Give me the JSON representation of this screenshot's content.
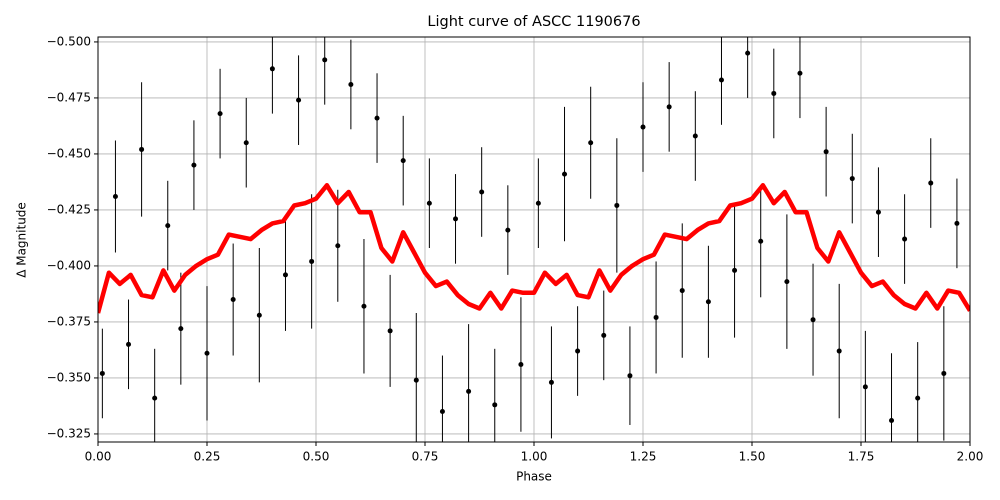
{
  "chart_data": {
    "type": "scatter",
    "title": "Light curve of ASCC 1190676",
    "xlabel": "Phase",
    "ylabel": "Δ Magnitude",
    "xlim": [
      0,
      2
    ],
    "ylim": [
      -0.3214,
      -0.5022
    ],
    "grid": true,
    "xticks": [
      {
        "value": 0,
        "label": "0.00"
      },
      {
        "value": 0.25,
        "label": "0.25"
      },
      {
        "value": 0.5,
        "label": "0.50"
      },
      {
        "value": 0.75,
        "label": "0.75"
      },
      {
        "value": 1,
        "label": "1.00"
      },
      {
        "value": 1.25,
        "label": "1.25"
      },
      {
        "value": 1.5,
        "label": "1.50"
      },
      {
        "value": 1.75,
        "label": "1.75"
      },
      {
        "value": 2,
        "label": "2.00"
      }
    ],
    "yticks": [
      {
        "value": -0.325,
        "label": "−0.325"
      },
      {
        "value": -0.35,
        "label": "−0.350"
      },
      {
        "value": -0.375,
        "label": "−0.375"
      },
      {
        "value": -0.4,
        "label": "−0.400"
      },
      {
        "value": -0.425,
        "label": "−0.425"
      },
      {
        "value": -0.45,
        "label": "−0.450"
      },
      {
        "value": -0.475,
        "label": "−0.475"
      },
      {
        "value": -0.5,
        "label": "−0.500"
      }
    ],
    "points": {
      "color": "#000000",
      "x": [
        0.01,
        0.04,
        0.07,
        0.1,
        0.13,
        0.16,
        0.19,
        0.22,
        0.25,
        0.28,
        0.31,
        0.34,
        0.37,
        0.4,
        0.43,
        0.46,
        0.49,
        0.52,
        0.55,
        0.58,
        0.61,
        0.64,
        0.67,
        0.7,
        0.73,
        0.76,
        0.79,
        0.82,
        0.85,
        0.88,
        0.91,
        0.94,
        0.97,
        1.01,
        1.04,
        1.07,
        1.1,
        1.13,
        1.16,
        1.19,
        1.22,
        1.25,
        1.28,
        1.31,
        1.34,
        1.37,
        1.4,
        1.43,
        1.46,
        1.49,
        1.52,
        1.55,
        1.58,
        1.61,
        1.64,
        1.67,
        1.7,
        1.73,
        1.76,
        1.79,
        1.82,
        1.85,
        1.88,
        1.91,
        1.94,
        1.97
      ],
      "y": [
        -0.352,
        -0.431,
        -0.365,
        -0.452,
        -0.341,
        -0.418,
        -0.372,
        -0.445,
        -0.361,
        -0.468,
        -0.385,
        -0.455,
        -0.378,
        -0.488,
        -0.396,
        -0.474,
        -0.402,
        -0.492,
        -0.409,
        -0.481,
        -0.382,
        -0.466,
        -0.371,
        -0.447,
        -0.349,
        -0.428,
        -0.335,
        -0.421,
        -0.344,
        -0.433,
        -0.338,
        -0.416,
        -0.356,
        -0.428,
        -0.348,
        -0.441,
        -0.362,
        -0.455,
        -0.369,
        -0.427,
        -0.351,
        -0.462,
        -0.377,
        -0.471,
        -0.389,
        -0.458,
        -0.384,
        -0.483,
        -0.398,
        -0.495,
        -0.411,
        -0.477,
        -0.393,
        -0.486,
        -0.376,
        -0.451,
        -0.362,
        -0.439,
        -0.346,
        -0.424,
        -0.331,
        -0.412,
        -0.341,
        -0.437,
        -0.352,
        -0.419
      ],
      "yerr": [
        0.02,
        0.025,
        0.02,
        0.03,
        0.022,
        0.02,
        0.025,
        0.02,
        0.03,
        0.02,
        0.025,
        0.02,
        0.03,
        0.02,
        0.025,
        0.02,
        0.03,
        0.02,
        0.025,
        0.02,
        0.03,
        0.02,
        0.025,
        0.02,
        0.03,
        0.02,
        0.025,
        0.02,
        0.03,
        0.02,
        0.025,
        0.02,
        0.03,
        0.02,
        0.025,
        0.03,
        0.02,
        0.025,
        0.02,
        0.03,
        0.022,
        0.02,
        0.025,
        0.02,
        0.03,
        0.02,
        0.025,
        0.02,
        0.03,
        0.02,
        0.025,
        0.02,
        0.03,
        0.02,
        0.025,
        0.02,
        0.03,
        0.02,
        0.025,
        0.02,
        0.03,
        0.02,
        0.025,
        0.02,
        0.03,
        0.02
      ]
    },
    "curve": {
      "color": "#ff0000",
      "x": [
        0,
        0.025,
        0.05,
        0.075,
        0.1,
        0.125,
        0.15,
        0.175,
        0.2,
        0.225,
        0.25,
        0.275,
        0.3,
        0.325,
        0.35,
        0.375,
        0.4,
        0.425,
        0.45,
        0.475,
        0.5,
        0.525,
        0.55,
        0.575,
        0.6,
        0.625,
        0.65,
        0.675,
        0.7,
        0.725,
        0.75,
        0.775,
        0.8,
        0.825,
        0.85,
        0.875,
        0.9,
        0.925,
        0.95,
        0.975,
        1,
        1.025,
        1.05,
        1.075,
        1.1,
        1.125,
        1.15,
        1.175,
        1.2,
        1.225,
        1.25,
        1.275,
        1.3,
        1.325,
        1.35,
        1.375,
        1.4,
        1.425,
        1.45,
        1.475,
        1.5,
        1.525,
        1.55,
        1.575,
        1.6,
        1.625,
        1.65,
        1.675,
        1.7,
        1.725,
        1.75,
        1.775,
        1.8,
        1.825,
        1.85,
        1.875,
        1.9,
        1.925,
        1.95,
        1.975,
        2
      ],
      "y": [
        -0.379,
        -0.397,
        -0.392,
        -0.396,
        -0.387,
        -0.386,
        -0.398,
        -0.389,
        -0.396,
        -0.4,
        -0.403,
        -0.405,
        -0.414,
        -0.413,
        -0.412,
        -0.416,
        -0.419,
        -0.42,
        -0.427,
        -0.428,
        -0.43,
        -0.436,
        -0.428,
        -0.433,
        -0.424,
        -0.424,
        -0.408,
        -0.402,
        -0.415,
        -0.406,
        -0.397,
        -0.391,
        -0.393,
        -0.387,
        -0.383,
        -0.381,
        -0.388,
        -0.381,
        -0.389,
        -0.388,
        -0.388,
        -0.397,
        -0.392,
        -0.396,
        -0.387,
        -0.386,
        -0.398,
        -0.389,
        -0.396,
        -0.4,
        -0.403,
        -0.405,
        -0.414,
        -0.413,
        -0.412,
        -0.416,
        -0.419,
        -0.42,
        -0.427,
        -0.428,
        -0.43,
        -0.436,
        -0.428,
        -0.433,
        -0.424,
        -0.424,
        -0.408,
        -0.402,
        -0.415,
        -0.406,
        -0.397,
        -0.391,
        -0.393,
        -0.387,
        -0.383,
        -0.381,
        -0.388,
        -0.381,
        -0.389,
        -0.388,
        -0.38
      ]
    }
  }
}
